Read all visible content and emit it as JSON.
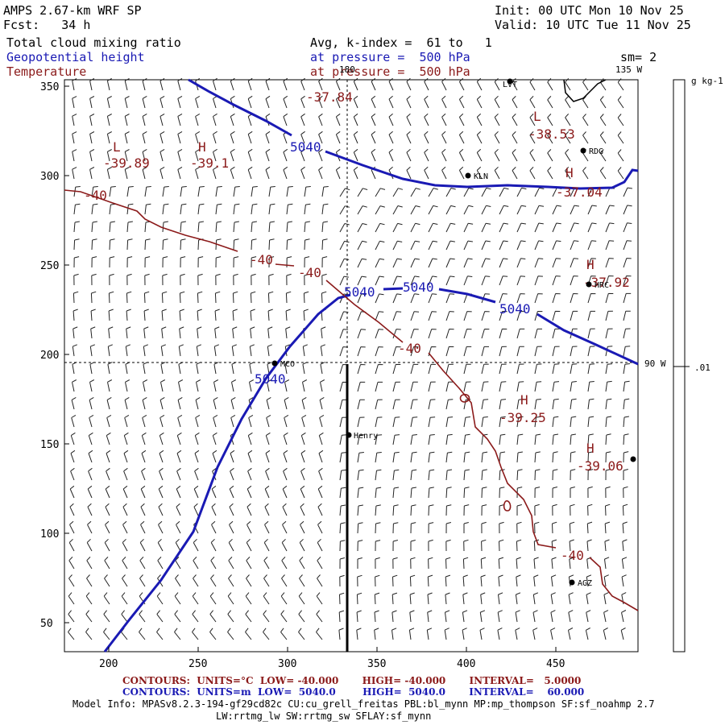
{
  "header": {
    "model": "AMPS 2.67-km WRF SP",
    "fcst_label": "Fcst:",
    "fcst_value": "34 h",
    "init": "Init: 00 UTC Mon 10 Nov 25",
    "valid": "Valid: 10 UTC Tue 11 Nov 25",
    "field1": "Total cloud mixing ratio",
    "field2": "Geopotential height",
    "field3": "Temperature",
    "avg": "Avg, k-index =  61 to   1",
    "pressure1": "at pressure =  500 hPa",
    "pressure2": "at pressure =  500 hPa",
    "sm": "sm= 2"
  },
  "axes": {
    "x_ticks": [
      "200",
      "250",
      "300",
      "350",
      "400",
      "450"
    ],
    "y_ticks": [
      "350",
      "300",
      "250",
      "200",
      "150",
      "100",
      "50"
    ]
  },
  "map_labels": {
    "lon_180": "180",
    "lon_135w": "135 W",
    "lon_90w": "90 W"
  },
  "colorbar": {
    "unit": "g kg-1",
    "tick": ".01"
  },
  "stations": [
    {
      "name": "LVT"
    },
    {
      "name": "RDG"
    },
    {
      "name": "KLN"
    },
    {
      "name": "HRC"
    },
    {
      "name": "MCO"
    },
    {
      "name": "Henry"
    },
    {
      "name": "AGZ"
    }
  ],
  "extrema": [
    {
      "type": "L",
      "value": "-39.89"
    },
    {
      "type": "H",
      "value": "-39.1"
    },
    {
      "type": "L",
      "value": "-38.53"
    },
    {
      "type": "H",
      "value": "-37.04"
    },
    {
      "type": "H",
      "value": "-37.92"
    },
    {
      "type": "H",
      "value": "-39.25"
    },
    {
      "type": "H",
      "value": "-39.06"
    },
    {
      "type": "",
      "value": "-37.84"
    }
  ],
  "contour_labels": {
    "temp": "-40",
    "height": "5040"
  },
  "footer": {
    "temp_contours": "CONTOURS:  UNITS=°C  LOW= -40.000       HIGH= -40.000       INTERVAL=   5.0000",
    "height_contours": "CONTOURS:  UNITS=m  LOW=  5040.0        HIGH=  5040.0       INTERVAL=    60.000",
    "model_info": "Model Info: MPASv8.2.3-194-gf29cd82c CU:cu_grell_freitas PBL:bl_mynn MP:mp_thompson SF:sf_noahmp 2.7",
    "model_info2": "LW:rrtmg_lw SW:rrtmg_sw SFLAY:sf_mynn"
  },
  "colors": {
    "temperature": "#8b1a1a",
    "height": "#1a1ab4",
    "barbs": "#222222"
  }
}
